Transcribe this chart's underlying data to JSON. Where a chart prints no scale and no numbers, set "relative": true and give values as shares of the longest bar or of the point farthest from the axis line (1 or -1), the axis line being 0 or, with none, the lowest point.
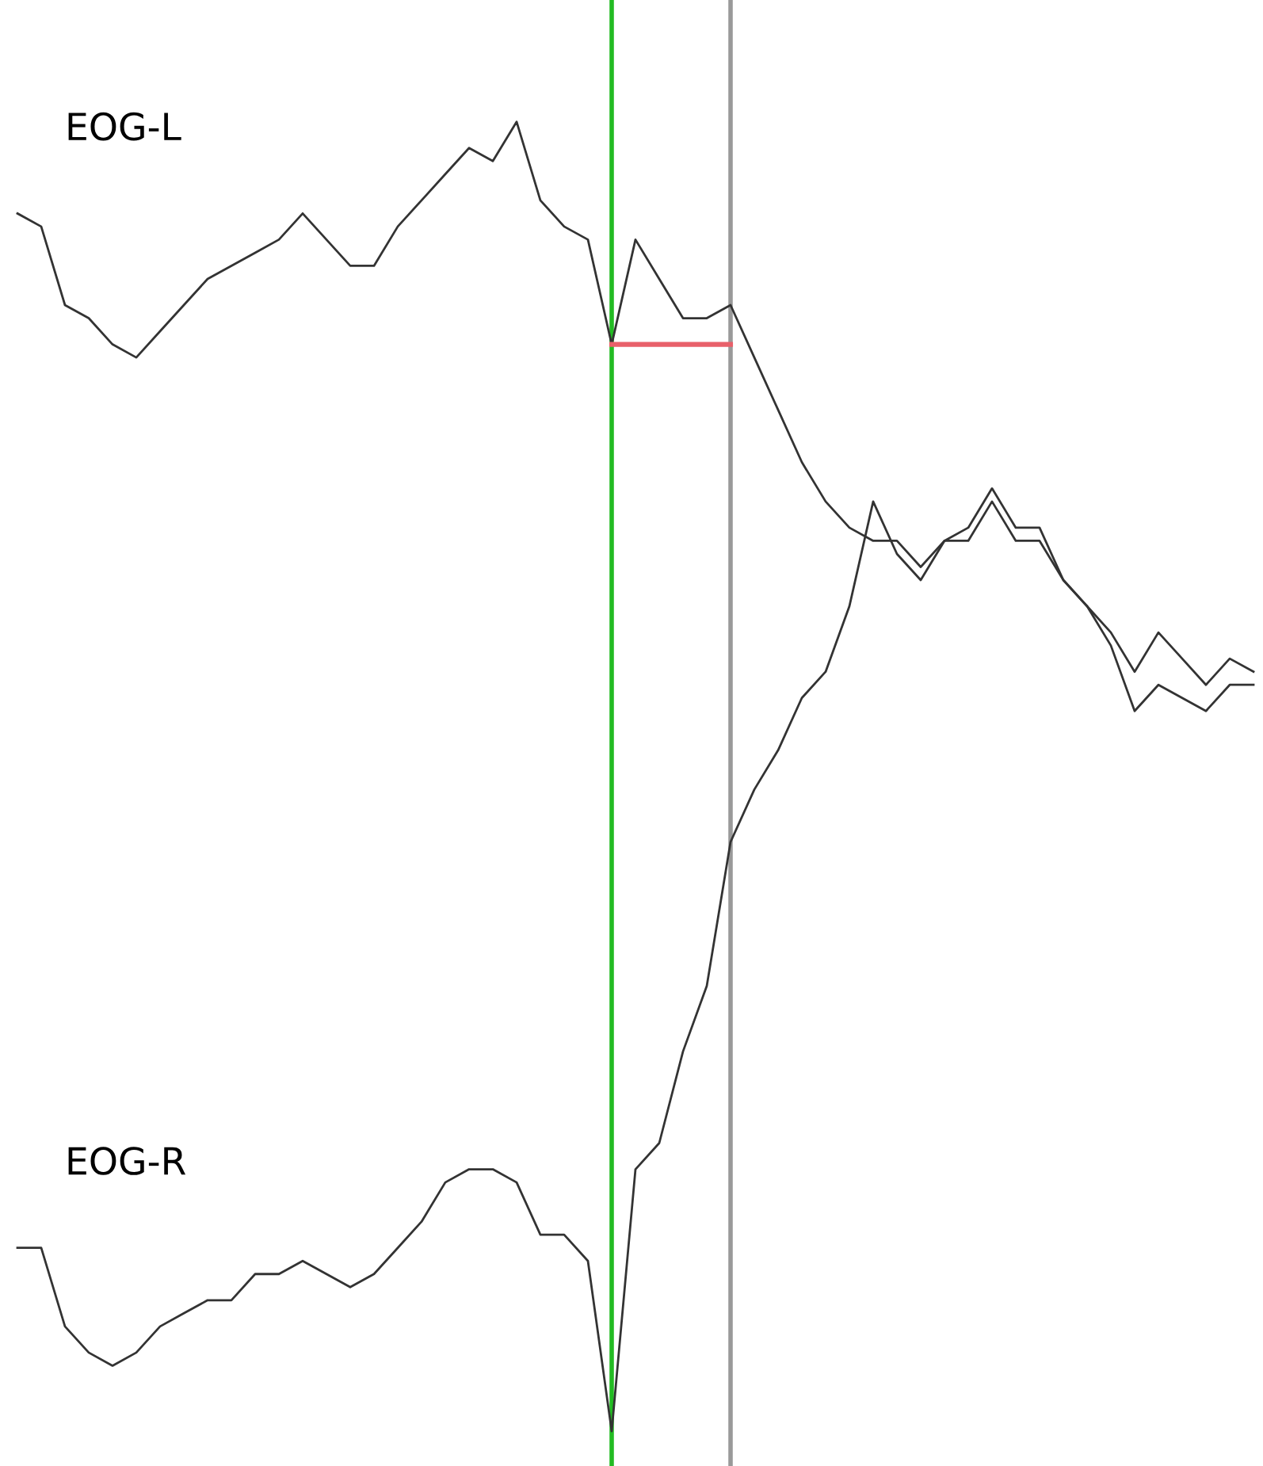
{
  "chart_data": {
    "type": "line",
    "relative": true,
    "categories": [
      null,
      null,
      null,
      null,
      null,
      null,
      null,
      null,
      null,
      null,
      null,
      null,
      null,
      null,
      null,
      null,
      null,
      null,
      null,
      null,
      null,
      null,
      null,
      null,
      null,
      null,
      null,
      null,
      null,
      null,
      null,
      null,
      null,
      null,
      null,
      null,
      null,
      null,
      null,
      null,
      null,
      null,
      null,
      null,
      null,
      null,
      null,
      null,
      null,
      null,
      null,
      null,
      null
    ],
    "series": [
      {
        "name": "EOG-L",
        "color": "#333333",
        "values": [
          0.93,
          0.92,
          0.86,
          0.85,
          0.83,
          0.82,
          0.84,
          0.86,
          0.88,
          0.89,
          0.9,
          0.91,
          0.93,
          0.91,
          0.89,
          0.89,
          0.92,
          0.94,
          0.96,
          0.98,
          0.97,
          1.0,
          0.94,
          0.92,
          0.91,
          0.83,
          0.91,
          0.88,
          0.85,
          0.85,
          0.86,
          0.82,
          0.78,
          0.74,
          0.71,
          0.69,
          0.68,
          0.68,
          0.66,
          0.68,
          0.69,
          0.72,
          0.69,
          0.69,
          0.65,
          0.63,
          0.61,
          0.58,
          0.61,
          0.59,
          0.57,
          0.59,
          0.58
        ]
      },
      {
        "name": "EOG-R",
        "color": "#333333",
        "values": [
          0.14,
          0.14,
          0.08,
          0.06,
          0.05,
          0.06,
          0.08,
          0.09,
          0.1,
          0.1,
          0.12,
          0.12,
          0.13,
          0.12,
          0.11,
          0.12,
          0.14,
          0.16,
          0.19,
          0.2,
          0.2,
          0.19,
          0.15,
          0.15,
          0.13,
          0,
          0.2,
          0.22,
          0.29,
          0.34,
          0.45,
          0.49,
          0.52,
          0.56,
          0.58,
          0.63,
          0.71,
          0.67,
          0.65,
          0.68,
          0.68,
          0.71,
          0.68,
          0.68,
          0.65,
          0.63,
          0.6,
          0.55,
          0.57,
          0.56,
          0.55,
          0.57,
          0.57
        ]
      },
      {
        "color": "#e8606a",
        "values": [
          null,
          null,
          null,
          null,
          null,
          null,
          null,
          null,
          null,
          null,
          null,
          null,
          null,
          null,
          null,
          null,
          null,
          null,
          null,
          null,
          null,
          null,
          null,
          null,
          null,
          0.83,
          0.83,
          0.83,
          0.83,
          0.83,
          0.83,
          null,
          null,
          null,
          null,
          null,
          null,
          null,
          null,
          null,
          null,
          null,
          null,
          null,
          null,
          null,
          null,
          null,
          null,
          null,
          null,
          null,
          null
        ]
      }
    ]
  }
}
